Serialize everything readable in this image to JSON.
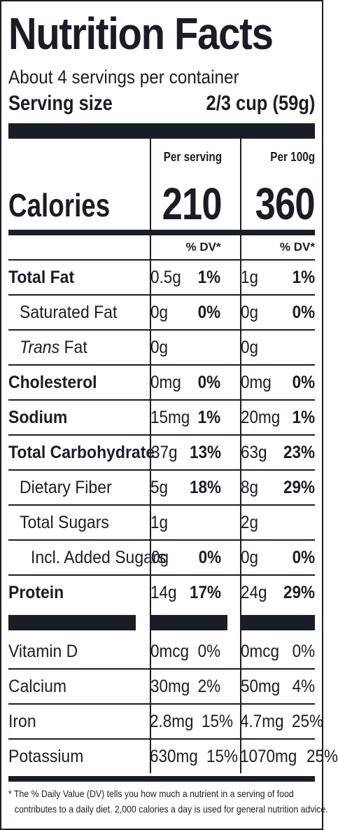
{
  "title": "Nutrition Facts",
  "servings": "About 4 servings per container",
  "serving_size": {
    "label": "Serving size",
    "value": "2/3 cup (59g)"
  },
  "columns": {
    "per_serving": "Per serving",
    "per_100g": "Per 100g",
    "dv_header": "% DV*"
  },
  "calories": {
    "label": "Calories",
    "per_serving": "210",
    "per_100g": "360"
  },
  "nutrients": [
    {
      "name": "Total Fat",
      "s_amt": "0.5g",
      "s_dv": "1%",
      "h_amt": "1g",
      "h_dv": "1%"
    },
    {
      "name": "Saturated Fat",
      "s_amt": "0g",
      "s_dv": "0%",
      "h_amt": "0g",
      "h_dv": "0%"
    },
    {
      "name_italic": "Trans",
      "name": " Fat",
      "s_amt": "0g",
      "s_dv": "",
      "h_amt": "0g",
      "h_dv": ""
    },
    {
      "name": "Cholesterol",
      "s_amt": "0mg",
      "s_dv": "0%",
      "h_amt": "0mg",
      "h_dv": "0%"
    },
    {
      "name": "Sodium",
      "s_amt": "15mg",
      "s_dv": "1%",
      "h_amt": "20mg",
      "h_dv": "1%"
    },
    {
      "name": "Total Carbohydrate",
      "s_amt": "37g",
      "s_dv": "13%",
      "h_amt": "63g",
      "h_dv": "23%"
    },
    {
      "name": "Dietary Fiber",
      "s_amt": "5g",
      "s_dv": "18%",
      "h_amt": "8g",
      "h_dv": "29%"
    },
    {
      "name": "Total Sugars",
      "s_amt": "1g",
      "s_dv": "",
      "h_amt": "2g",
      "h_dv": ""
    },
    {
      "name": "Incl. Added Sugars",
      "s_amt": "0g",
      "s_dv": "0%",
      "h_amt": "0g",
      "h_dv": "0%"
    },
    {
      "name": "Protein",
      "s_amt": "14g",
      "s_dv": "17%",
      "h_amt": "24g",
      "h_dv": "29%"
    }
  ],
  "minerals": [
    {
      "name": "Vitamin D",
      "s_amt": "0mcg",
      "s_dv": "0%",
      "h_amt": "0mcg",
      "h_dv": "0%"
    },
    {
      "name": "Calcium",
      "s_amt": "30mg",
      "s_dv": "2%",
      "h_amt": "50mg",
      "h_dv": "4%"
    },
    {
      "name": "Iron",
      "s_amt": "2.8mg",
      "s_dv": "15%",
      "h_amt": "4.7mg",
      "h_dv": "25%"
    },
    {
      "name": "Potassium",
      "s_amt": "630mg",
      "s_dv": "15%",
      "h_amt": "1070mg",
      "h_dv": "25%"
    }
  ],
  "footnote": {
    "line1": "* The % Daily Value (DV) tells you how much a nutrient in a serving of food",
    "line2": "contributes to a daily diet. 2,000 calories a day is used for general nutrition advice."
  }
}
